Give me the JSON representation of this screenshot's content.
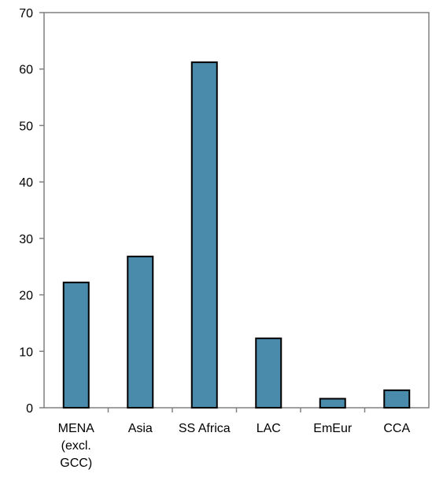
{
  "chart_data": {
    "type": "bar",
    "categories": [
      "MENA (excl. GCC)",
      "Asia",
      "SS Africa",
      "LAC",
      "EmEur",
      "CCA"
    ],
    "category_lines": [
      [
        "MENA",
        "(excl.",
        "GCC)"
      ],
      [
        "Asia"
      ],
      [
        "SS Africa"
      ],
      [
        "LAC"
      ],
      [
        "EmEur"
      ],
      [
        "CCA"
      ]
    ],
    "values": [
      22.2,
      26.8,
      61.2,
      12.3,
      1.6,
      3.1
    ],
    "ylim": [
      0,
      70
    ],
    "yticks": [
      0,
      10,
      20,
      30,
      40,
      50,
      60,
      70
    ],
    "title": "",
    "xlabel": "",
    "ylabel": "",
    "grid": false,
    "legend": "none",
    "colors": {
      "bar_fill": "#4a8aab",
      "bar_stroke": "#000000",
      "axis": "#808080"
    }
  }
}
